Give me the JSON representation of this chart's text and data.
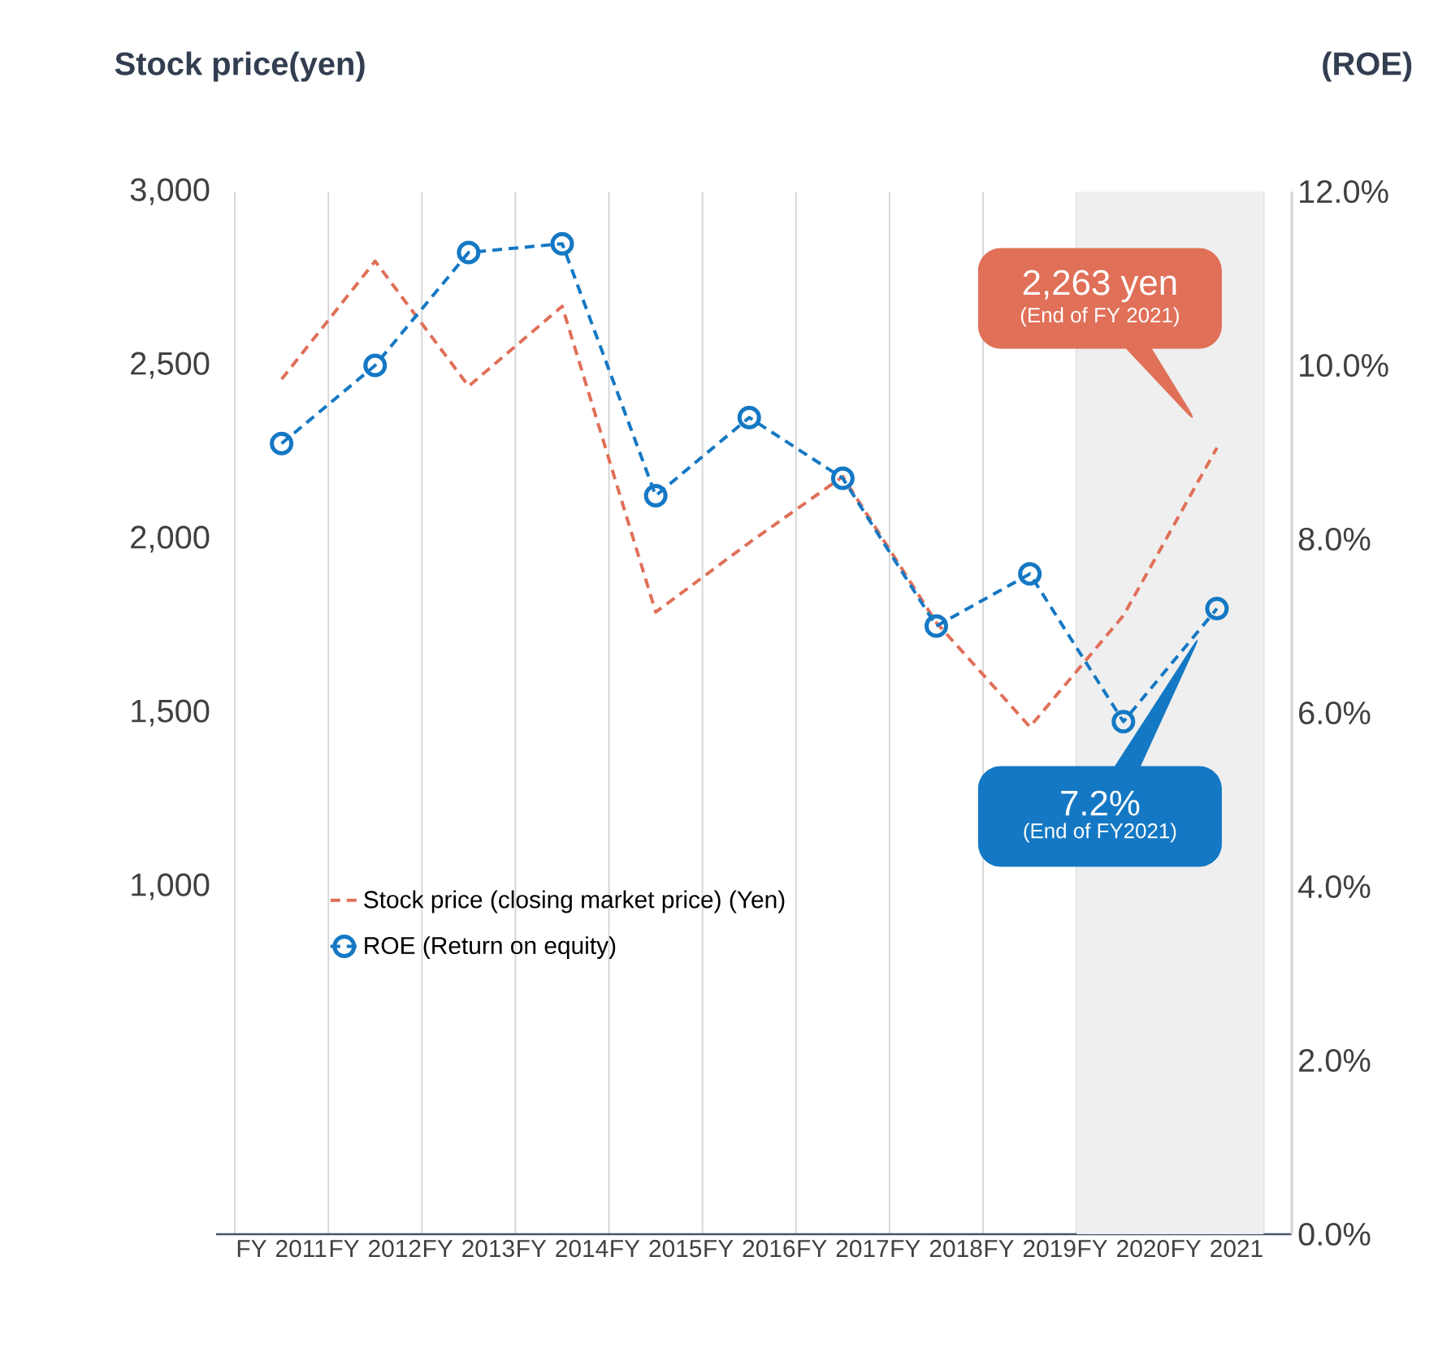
{
  "chart_data": {
    "type": "line",
    "ylabel": "Stock price(yen)",
    "y2label": "(ROE)",
    "categories": [
      "FY 2011",
      "FY 2012",
      "FY 2013",
      "FY 2014",
      "FY 2015",
      "FY 2016",
      "FY 2017",
      "FY 2018",
      "FY 2019",
      "FY 2020",
      "FY 2021"
    ],
    "series": [
      {
        "name": "Stock price (closing market price) (Yen)",
        "color": "#e07058",
        "line_style": "dashed",
        "marker": "none",
        "values": [
          2460,
          2800,
          2440,
          2670,
          1790,
          1990,
          2180,
          1760,
          1460,
          1780,
          2263
        ]
      },
      {
        "name": "ROE (Return on equity)",
        "color": "#1478c4",
        "line_style": "dashed",
        "marker": "circle",
        "axis": "y2",
        "values": [
          9.1,
          10.0,
          11.3,
          11.4,
          8.5,
          9.4,
          8.7,
          7.0,
          7.6,
          5.9,
          7.2
        ]
      }
    ],
    "ylim": [
      0,
      3000
    ],
    "yticks": [
      {
        "value": 1000,
        "label": "1,000"
      },
      {
        "value": 1500,
        "label": "1,500"
      },
      {
        "value": 2000,
        "label": "2,000"
      },
      {
        "value": 2500,
        "label": "2,500"
      },
      {
        "value": 3000,
        "label": "3,000"
      }
    ],
    "y2lim": [
      0,
      12
    ],
    "y2ticks": [
      {
        "value": 0,
        "label": "0.0%"
      },
      {
        "value": 2,
        "label": "2.0%"
      },
      {
        "value": 4,
        "label": "4.0%"
      },
      {
        "value": 6,
        "label": "6.0%"
      },
      {
        "value": 8,
        "label": "8.0%"
      },
      {
        "value": 10,
        "label": "10.0%"
      },
      {
        "value": 12,
        "label": "12.0%"
      }
    ],
    "bands": [
      {
        "axis": "x",
        "from": "FY 2020",
        "to": "FY 2021",
        "color": "#efefef"
      }
    ],
    "annotations": [
      "2,263 yen",
      "(End of FY 2021)",
      "7.2%",
      "(End of FY2021)"
    ],
    "grid": "x",
    "legend": "bottom"
  }
}
